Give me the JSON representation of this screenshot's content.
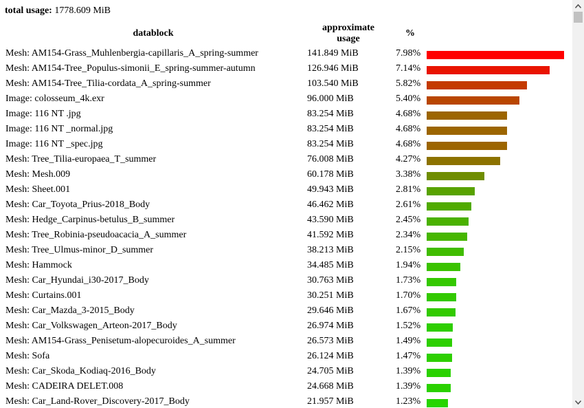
{
  "summary": {
    "label": "total usage:",
    "value": "1778.609 MiB"
  },
  "table": {
    "headers": {
      "datablock": "datablock",
      "usage_line1": "approximate",
      "usage_line2": "usage",
      "percent": "%"
    },
    "rows": [
      {
        "name": "Mesh: AM154-Grass_Muhlenbergia-capillaris_A_spring-summer",
        "usage": "141.849 MiB",
        "pct": "7.98%",
        "fraction": 0.0798,
        "color": "#ff0000"
      },
      {
        "name": "Mesh: AM154-Tree_Populus-simonii_E_spring-summer-autumn",
        "usage": "126.946 MiB",
        "pct": "7.14%",
        "fraction": 0.0714,
        "color": "#e91400"
      },
      {
        "name": "Mesh: AM154-Tree_Tilia-cordata_A_spring-summer",
        "usage": "103.540 MiB",
        "pct": "5.82%",
        "fraction": 0.0582,
        "color": "#c43a00"
      },
      {
        "name": "Image: colosseum_4k.exr",
        "usage": "96.000 MiB",
        "pct": "5.40%",
        "fraction": 0.054,
        "color": "#b94600"
      },
      {
        "name": "Image: 116 NT .jpg",
        "usage": "83.254 MiB",
        "pct": "4.68%",
        "fraction": 0.0468,
        "color": "#9c6500"
      },
      {
        "name": "Image: 116 NT _normal.jpg",
        "usage": "83.254 MiB",
        "pct": "4.68%",
        "fraction": 0.0468,
        "color": "#9c6500"
      },
      {
        "name": "Image: 116 NT _spec.jpg",
        "usage": "83.254 MiB",
        "pct": "4.68%",
        "fraction": 0.0468,
        "color": "#9c6500"
      },
      {
        "name": "Mesh: Tree_Tilia-europaea_T_summer",
        "usage": "76.008 MiB",
        "pct": "4.27%",
        "fraction": 0.0427,
        "color": "#8c7200"
      },
      {
        "name": "Mesh: Mesh.009",
        "usage": "60.178 MiB",
        "pct": "3.38%",
        "fraction": 0.0338,
        "color": "#6f8d00"
      },
      {
        "name": "Mesh: Sheet.001",
        "usage": "49.943 MiB",
        "pct": "2.81%",
        "fraction": 0.0281,
        "color": "#58a200"
      },
      {
        "name": "Mesh: Car_Toyota_Prius-2018_Body",
        "usage": "46.462 MiB",
        "pct": "2.61%",
        "fraction": 0.0261,
        "color": "#50aa00"
      },
      {
        "name": "Mesh: Hedge_Carpinus-betulus_B_summer",
        "usage": "43.590 MiB",
        "pct": "2.45%",
        "fraction": 0.0245,
        "color": "#4ab100"
      },
      {
        "name": "Mesh: Tree_Robinia-pseudoacacia_A_summer",
        "usage": "41.592 MiB",
        "pct": "2.34%",
        "fraction": 0.0234,
        "color": "#46b600"
      },
      {
        "name": "Mesh: Tree_Ulmus-minor_D_summer",
        "usage": "38.213 MiB",
        "pct": "2.15%",
        "fraction": 0.0215,
        "color": "#40bc00"
      },
      {
        "name": "Mesh: Hammock",
        "usage": "34.485 MiB",
        "pct": "1.94%",
        "fraction": 0.0194,
        "color": "#3ac200"
      },
      {
        "name": "Mesh: Car_Hyundai_i30-2017_Body",
        "usage": "30.763 MiB",
        "pct": "1.73%",
        "fraction": 0.0173,
        "color": "#34c800"
      },
      {
        "name": "Mesh: Curtains.001",
        "usage": "30.251 MiB",
        "pct": "1.70%",
        "fraction": 0.017,
        "color": "#33c900"
      },
      {
        "name": "Mesh: Car_Mazda_3-2015_Body",
        "usage": "29.646 MiB",
        "pct": "1.67%",
        "fraction": 0.0167,
        "color": "#32ca00"
      },
      {
        "name": "Mesh: Car_Volkswagen_Arteon-2017_Body",
        "usage": "26.974 MiB",
        "pct": "1.52%",
        "fraction": 0.0152,
        "color": "#2ece00"
      },
      {
        "name": "Mesh: AM154-Grass_Penisetum-alopecuroides_A_summer",
        "usage": "26.573 MiB",
        "pct": "1.49%",
        "fraction": 0.0149,
        "color": "#2dcf00"
      },
      {
        "name": "Mesh: Sofa",
        "usage": "26.124 MiB",
        "pct": "1.47%",
        "fraction": 0.0147,
        "color": "#2dcf00"
      },
      {
        "name": "Mesh: Car_Skoda_Kodiaq-2016_Body",
        "usage": "24.705 MiB",
        "pct": "1.39%",
        "fraction": 0.0139,
        "color": "#2ad100"
      },
      {
        "name": "Mesh: CADEIRA DELET.008",
        "usage": "24.668 MiB",
        "pct": "1.39%",
        "fraction": 0.0139,
        "color": "#2ad100"
      },
      {
        "name": "Mesh: Car_Land-Rover_Discovery-2017_Body",
        "usage": "21.957 MiB",
        "pct": "1.23%",
        "fraction": 0.0123,
        "color": "#26d500"
      }
    ]
  },
  "scrollbar": {
    "up_icon": "triangle-up-icon",
    "down_icon": "triangle-down-icon"
  }
}
